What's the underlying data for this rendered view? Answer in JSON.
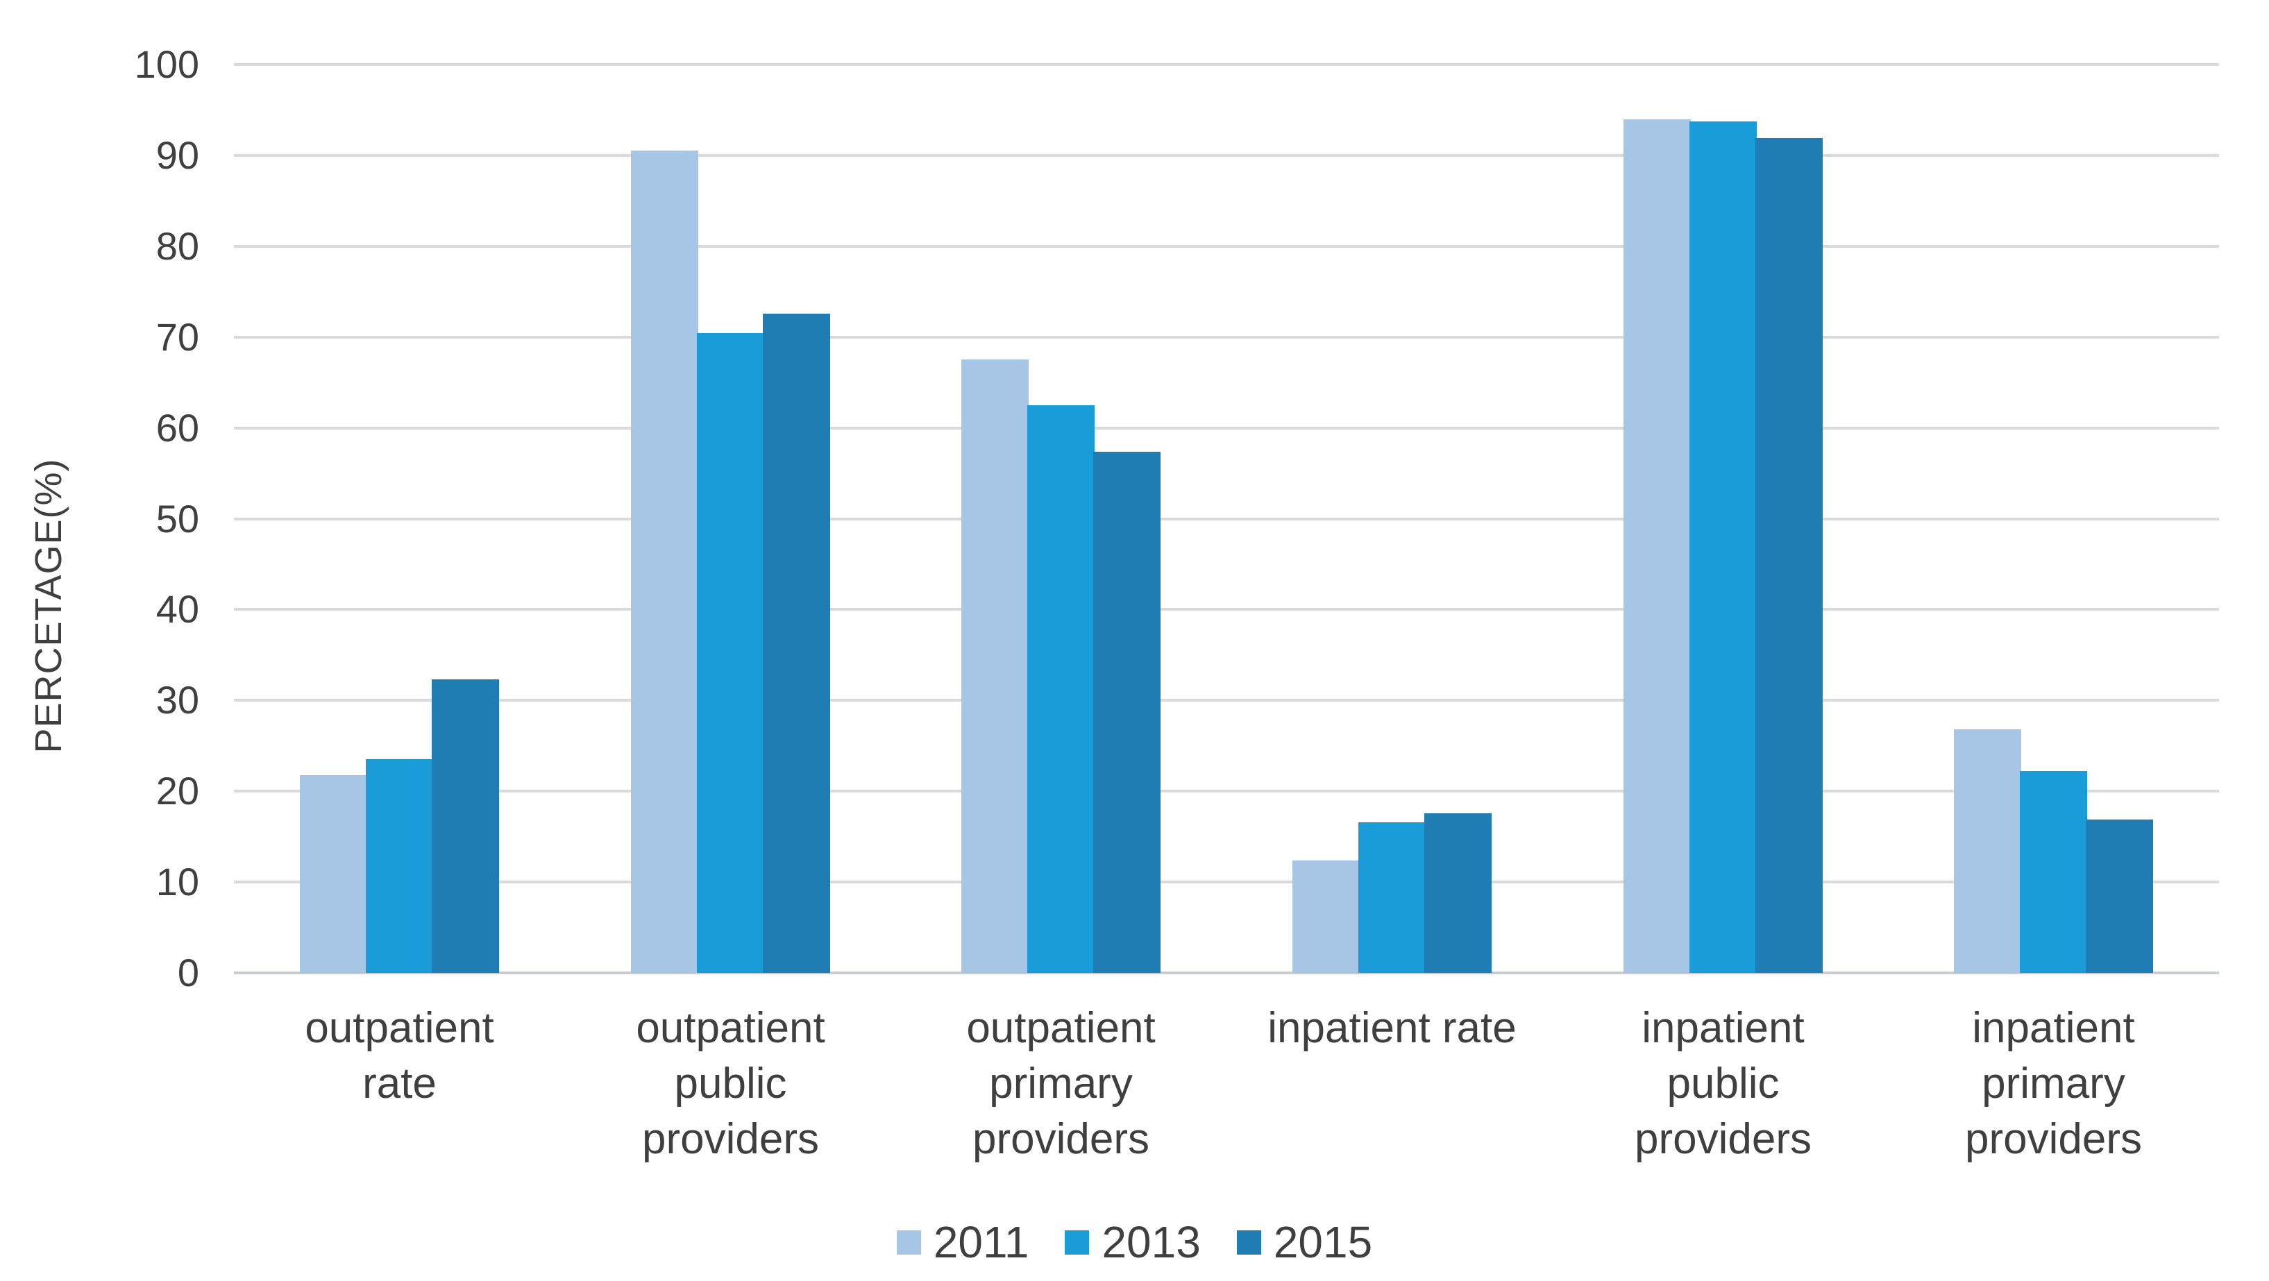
{
  "chart_data": {
    "type": "bar",
    "title": "",
    "xlabel": "",
    "ylabel": "PERCETAGE(%)",
    "ylim": [
      0,
      100
    ],
    "yticks": [
      0,
      10,
      20,
      30,
      40,
      50,
      60,
      70,
      80,
      90,
      100
    ],
    "grid": "horizontal",
    "legend_position": "bottom-center",
    "categories": [
      "outpatient rate",
      "outpatient public providers",
      "outpatient primary providers",
      "inpatient rate",
      "inpatient public providers",
      "inpatient primary providers"
    ],
    "category_label_lines": [
      [
        "outpatient",
        "rate"
      ],
      [
        "outpatient",
        "public",
        "providers"
      ],
      [
        "outpatient",
        "primary",
        "providers"
      ],
      [
        "inpatient rate"
      ],
      [
        "inpatient",
        "public",
        "providers"
      ],
      [
        "inpatient",
        "primary",
        "providers"
      ]
    ],
    "series": [
      {
        "name": "2011",
        "color": "#a7c6e6",
        "values": [
          21.8,
          90.5,
          67.5,
          12.4,
          94.0,
          26.8
        ]
      },
      {
        "name": "2013",
        "color": "#1a9cd8",
        "values": [
          23.5,
          70.4,
          62.5,
          16.6,
          93.7,
          22.2
        ]
      },
      {
        "name": "2015",
        "color": "#1f7db4",
        "values": [
          32.3,
          72.6,
          57.4,
          17.6,
          91.9,
          16.9
        ]
      }
    ]
  },
  "colors": {
    "gridline": "#d9d9d9",
    "axis_text": "#3f3f3f",
    "background": "#ffffff"
  }
}
